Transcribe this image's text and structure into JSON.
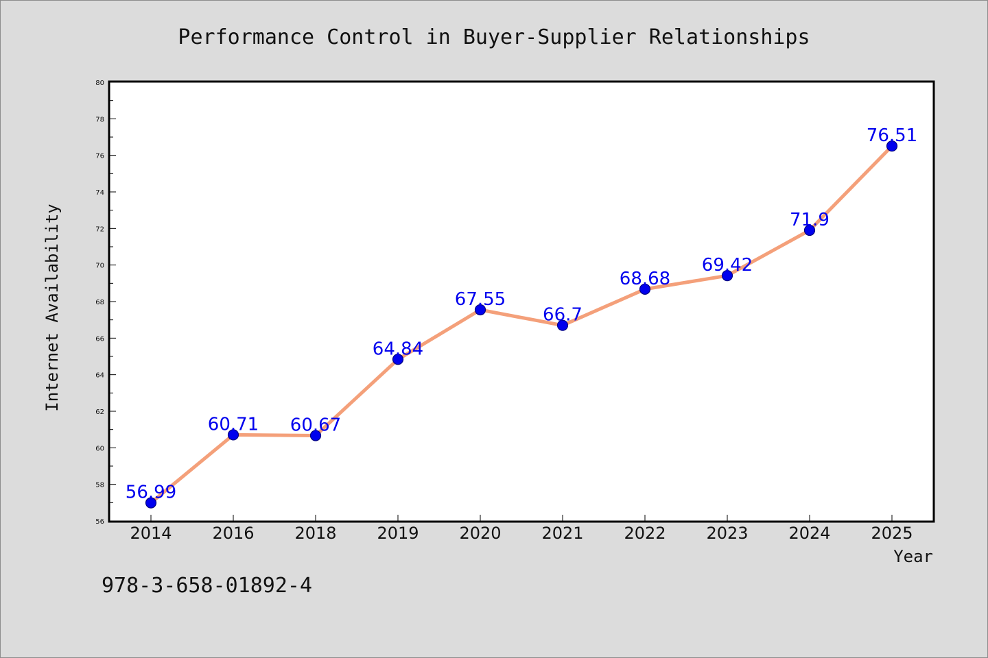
{
  "chart_data": {
    "type": "line",
    "title": "Performance Control in Buyer-Supplier Relationships",
    "xlabel": "Year",
    "ylabel": "Internet Availability",
    "categories": [
      "2014",
      "2016",
      "2018",
      "2019",
      "2020",
      "2021",
      "2022",
      "2023",
      "2024",
      "2025"
    ],
    "series": [
      {
        "values": [
          56.99,
          60.71,
          60.67,
          64.84,
          67.55,
          66.7,
          68.68,
          69.42,
          71.9,
          76.51
        ],
        "labels": [
          "56.99",
          "60.71",
          "60.67",
          "64.84",
          "67.55",
          "66.7",
          "68.68",
          "69.42",
          "71.9",
          "76.51"
        ]
      }
    ],
    "ylim": [
      56,
      80
    ],
    "yticks": [
      "56",
      "58",
      "60",
      "62",
      "64",
      "66",
      "68",
      "70",
      "72",
      "74",
      "76",
      "78",
      "80"
    ],
    "grid": false,
    "legend": "none",
    "annotation": "978-3-658-01892-4",
    "colors": {
      "background": "#dcdcdc",
      "plot_background": "#ffffff",
      "line": "#f4a07a",
      "marker_fill": "#0000ee",
      "marker_edge": "#000080",
      "data_label": "#0000ee"
    }
  }
}
